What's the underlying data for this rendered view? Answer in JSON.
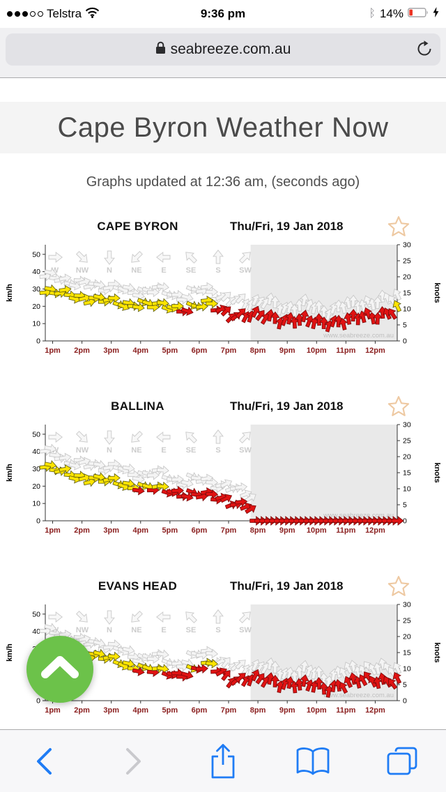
{
  "status_bar": {
    "carrier": "Telstra",
    "signal_dots_total": 5,
    "signal_dots_filled": 3,
    "time": "9:36 pm",
    "bluetooth_glyph": "ᛒ",
    "battery_percent": "14%"
  },
  "url_bar": {
    "url": "seabreeze.com.au"
  },
  "page": {
    "title": "Cape Byron Weather Now",
    "updated": "Graphs updated at 12:36 am, (seconds ago)"
  },
  "chart_common": {
    "x_labels": [
      "1pm",
      "2pm",
      "3pm",
      "4pm",
      "5pm",
      "6pm",
      "7pm",
      "8pm",
      "9pm",
      "10pm",
      "11pm",
      "12pm"
    ],
    "y_left": {
      "label": "km/h",
      "ticks": [
        0,
        10,
        20,
        30,
        40,
        50
      ]
    },
    "y_right": {
      "label": "knots",
      "ticks": [
        0,
        5,
        10,
        15,
        20,
        25,
        30
      ]
    },
    "legend": {
      "labels": [
        "W",
        "NW",
        "N",
        "NE",
        "E",
        "SE",
        "S",
        "SW"
      ],
      "dirs_deg": [
        270,
        315,
        0,
        45,
        90,
        135,
        180,
        225
      ]
    },
    "watermark": "www.seabreeze.com.au",
    "colors": {
      "yellow": "#ffe400",
      "yellow_stroke": "#5e5e10",
      "red": "#e01313",
      "red_stroke": "#7c0b0b",
      "gust_fill": "#f4f4f4",
      "gust_stroke": "#c6c6c6",
      "shade": "#e9e9e9",
      "axis": "#333333",
      "time_label": "#8b2020",
      "legend_gray": "#cccccc",
      "watermark_gray": "#c0c0c0"
    }
  },
  "chart_data": [
    {
      "type": "wind-arrows",
      "station": "CAPE BYRON",
      "date": "Thu/Fri, 19 Jan 2018",
      "units": "km/h",
      "t_start": 12.75,
      "t_end": 24.75,
      "shade_from": 19.75,
      "yellow_min_kmh": 18.5,
      "gust_plus": 8,
      "gust_until": 24.75,
      "calm_from": null,
      "anchors": {
        "t": [
          12.75,
          13.5,
          14.5,
          15.5,
          16.0,
          16.5,
          17.5,
          18.25,
          19.0,
          19.5,
          20.5,
          21.5,
          22.0,
          22.5,
          23.0,
          24.0,
          24.75
        ],
        "speed_kmh": [
          28,
          27,
          24,
          21,
          22,
          20,
          19,
          21,
          16,
          15,
          13,
          12,
          10,
          11,
          12,
          14,
          19
        ],
        "dir_deg": [
          265,
          268,
          272,
          278,
          280,
          282,
          278,
          272,
          240,
          210,
          195,
          190,
          185,
          185,
          180,
          170,
          150
        ]
      }
    },
    {
      "type": "wind-arrows",
      "station": "BALLINA",
      "date": "Thu/Fri, 19 Jan 2018",
      "units": "km/h",
      "t_start": 12.75,
      "t_end": 24.75,
      "shade_from": 19.75,
      "yellow_min_kmh": 18.5,
      "gust_plus": 8,
      "gust_until": 19.9,
      "calm_from": 19.9,
      "anchors": {
        "t": [
          12.75,
          13.5,
          14.5,
          15.5,
          16.25,
          17.0,
          18.0,
          19.0,
          19.6,
          19.85
        ],
        "speed_kmh": [
          31,
          27,
          24,
          21,
          19,
          17,
          15,
          12,
          9,
          6
        ],
        "dir_deg": [
          265,
          268,
          272,
          276,
          280,
          278,
          272,
          260,
          250,
          245
        ]
      }
    },
    {
      "type": "wind-arrows",
      "station": "EVANS HEAD",
      "date": "Thu/Fri, 19 Jan 2018",
      "units": "km/h",
      "t_start": 12.75,
      "t_end": 24.75,
      "shade_from": 19.75,
      "yellow_min_kmh": 18.5,
      "gust_plus": 7,
      "gust_until": 24.75,
      "calm_from": null,
      "anchors": {
        "t": [
          12.75,
          13.5,
          14.5,
          15.5,
          16.5,
          17.25,
          18.0,
          18.4,
          19.0,
          20.0,
          21.0,
          22.0,
          22.3,
          23.0,
          24.0,
          24.75
        ],
        "speed_kmh": [
          32,
          30,
          26,
          21,
          17,
          15,
          19,
          20,
          13,
          12,
          10,
          8,
          7,
          10,
          12,
          12
        ],
        "dir_deg": [
          270,
          270,
          275,
          280,
          285,
          280,
          275,
          270,
          230,
          200,
          190,
          185,
          180,
          165,
          155,
          150
        ]
      }
    }
  ],
  "toolbar": {
    "icons": [
      "back",
      "forward",
      "share",
      "bookmarks",
      "tabs"
    ]
  }
}
